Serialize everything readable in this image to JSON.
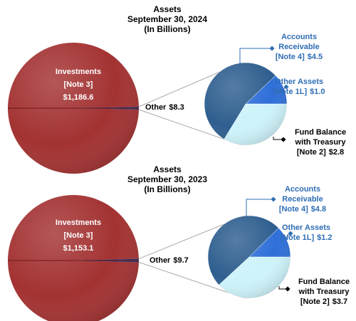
{
  "chart_data": [
    {
      "type": "pie-of-pie",
      "title": [
        "Assets",
        "September 30, 2024",
        "(In Billions)"
      ],
      "categories": [
        [
          "Investments",
          "[Note 3]"
        ],
        [
          "Other"
        ]
      ],
      "values": [
        1186.6,
        8.3
      ],
      "value_labels": [
        "$1,186.6",
        "$8.3"
      ],
      "colors": [
        "#a33232",
        "#1f2f6b"
      ],
      "secondary": {
        "categories": [
          [
            "Accounts",
            "Receivable",
            "[Note 4]"
          ],
          [
            "Other Assets",
            "[Note 1L]"
          ],
          [
            "Fund Balance",
            "with Treasury",
            "[Note 2]"
          ]
        ],
        "values": [
          4.5,
          1.0,
          2.8
        ],
        "value_labels": [
          "$4.5",
          "$1.0",
          "$2.8"
        ],
        "colors": [
          "#2f5f8f",
          "#2f6fd8",
          "#cdf3fa"
        ],
        "label_colors": [
          "#2e6db4",
          "#2e6db4",
          "#000000"
        ]
      }
    },
    {
      "type": "pie-of-pie",
      "title": [
        "Assets",
        "September 30, 2023",
        "(In Billions)"
      ],
      "categories": [
        [
          "Investments",
          "[Note 3]"
        ],
        [
          "Other"
        ]
      ],
      "values": [
        1153.1,
        9.7
      ],
      "value_labels": [
        "$1,153.1",
        "$9.7"
      ],
      "colors": [
        "#a33232",
        "#1f2f6b"
      ],
      "secondary": {
        "categories": [
          [
            "Accounts",
            "Receivable",
            "[Note 4]"
          ],
          [
            "Other Assets",
            "[Note 1L]"
          ],
          [
            "Fund Balance",
            "with Treasury",
            "[Note 2]"
          ]
        ],
        "values": [
          4.8,
          1.2,
          3.7
        ],
        "value_labels": [
          "$4.8",
          "$1.2",
          "$3.7"
        ],
        "colors": [
          "#2f5f8f",
          "#2f6fd8",
          "#cdf3fa"
        ],
        "label_colors": [
          "#2e6db4",
          "#2e6db4",
          "#000000"
        ]
      }
    }
  ]
}
